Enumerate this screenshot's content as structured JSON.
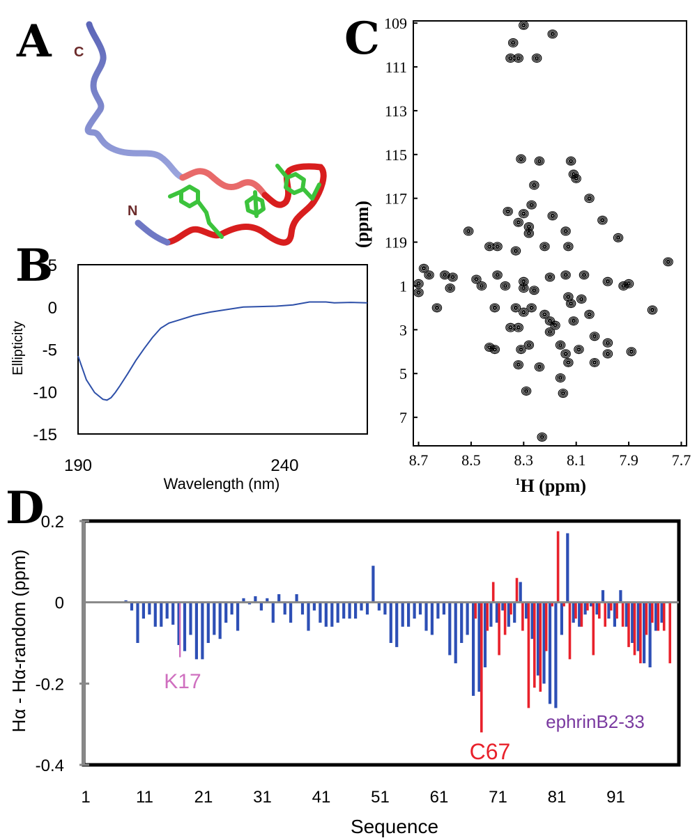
{
  "panels": {
    "A": {
      "letter": "A",
      "labels": {
        "c_term": "C",
        "n_term": "N"
      }
    },
    "B": {
      "letter": "B"
    },
    "C": {
      "letter": "C"
    },
    "D": {
      "letter": "D"
    }
  },
  "chart_data": [
    {
      "id": "B",
      "type": "line",
      "xlabel": "Wavelength (nm)",
      "ylabel": "Ellipticity",
      "xlim": [
        190,
        260
      ],
      "ylim": [
        -15,
        5
      ],
      "xticks": [
        "190",
        "240"
      ],
      "xtick_values": [
        190,
        240
      ],
      "yticks": [
        "5",
        "0",
        "-5",
        "-10",
        "-15"
      ],
      "ytick_values": [
        5,
        0,
        -5,
        -10,
        -15
      ],
      "color": "#2d4fa8",
      "series": [
        {
          "x": [
            190,
            192,
            194,
            196,
            197,
            198,
            199,
            200,
            202,
            204,
            206,
            208,
            210,
            212,
            214,
            218,
            222,
            226,
            230,
            234,
            238,
            242,
            246,
            250,
            252,
            256,
            260
          ],
          "y": [
            -5.8,
            -8.6,
            -10.1,
            -10.9,
            -11.0,
            -10.7,
            -10.1,
            -9.4,
            -7.9,
            -6.3,
            -4.9,
            -3.6,
            -2.5,
            -1.9,
            -1.6,
            -1.0,
            -0.6,
            -0.3,
            0.0,
            0.05,
            0.1,
            0.25,
            0.6,
            0.6,
            0.5,
            0.55,
            0.5
          ]
        }
      ]
    },
    {
      "id": "C",
      "type": "scatter",
      "xlabel": "1H (ppm)",
      "xlabel_sup": "1",
      "xlabel_rest": "H (ppm)",
      "ylabel": "(ppm)",
      "xlim": [
        8.72,
        7.68
      ],
      "ylim": [
        108.9,
        128.3
      ],
      "xticks": [
        "8.7",
        "8.5",
        "8.3",
        "8.1",
        "7.9",
        "7.7"
      ],
      "xtick_values": [
        8.7,
        8.5,
        8.3,
        8.1,
        7.9,
        7.7
      ],
      "yticks": [
        "109",
        "111",
        "113",
        "115",
        "117",
        "119",
        "1",
        "3",
        "5",
        "7"
      ],
      "ytick_values": [
        109,
        111,
        113,
        115,
        117,
        119,
        121,
        123,
        125,
        127
      ],
      "points": [
        [
          8.3,
          109.1
        ],
        [
          8.19,
          109.5
        ],
        [
          8.34,
          109.9
        ],
        [
          8.35,
          110.6
        ],
        [
          8.32,
          110.6
        ],
        [
          8.25,
          110.6
        ],
        [
          8.31,
          115.2
        ],
        [
          8.24,
          115.3
        ],
        [
          8.12,
          115.3
        ],
        [
          8.11,
          115.9
        ],
        [
          8.1,
          116.1
        ],
        [
          8.26,
          116.4
        ],
        [
          8.27,
          117.3
        ],
        [
          8.3,
          117.7
        ],
        [
          8.36,
          117.6
        ],
        [
          8.19,
          117.8
        ],
        [
          8.05,
          117.0
        ],
        [
          8.0,
          118.0
        ],
        [
          8.32,
          118.1
        ],
        [
          8.28,
          118.3
        ],
        [
          8.28,
          118.6
        ],
        [
          8.14,
          118.5
        ],
        [
          7.94,
          118.8
        ],
        [
          8.51,
          118.5
        ],
        [
          8.43,
          119.2
        ],
        [
          8.4,
          119.2
        ],
        [
          8.33,
          119.4
        ],
        [
          8.22,
          119.2
        ],
        [
          8.13,
          119.2
        ],
        [
          7.75,
          119.9
        ],
        [
          8.68,
          120.2
        ],
        [
          8.66,
          120.5
        ],
        [
          8.6,
          120.5
        ],
        [
          8.57,
          120.6
        ],
        [
          8.48,
          120.7
        ],
        [
          8.4,
          120.5
        ],
        [
          8.3,
          120.8
        ],
        [
          8.2,
          120.6
        ],
        [
          8.14,
          120.5
        ],
        [
          8.07,
          120.5
        ],
        [
          7.98,
          120.8
        ],
        [
          7.92,
          121.0
        ],
        [
          7.9,
          120.9
        ],
        [
          8.7,
          120.9
        ],
        [
          8.7,
          121.3
        ],
        [
          8.58,
          121.1
        ],
        [
          8.46,
          121.0
        ],
        [
          8.37,
          121.0
        ],
        [
          8.3,
          121.1
        ],
        [
          8.26,
          121.2
        ],
        [
          8.13,
          121.5
        ],
        [
          8.08,
          121.6
        ],
        [
          8.12,
          121.8
        ],
        [
          8.63,
          122.0
        ],
        [
          8.41,
          122.0
        ],
        [
          8.33,
          122.0
        ],
        [
          8.3,
          122.2
        ],
        [
          8.27,
          122.0
        ],
        [
          8.22,
          122.3
        ],
        [
          8.2,
          122.6
        ],
        [
          8.18,
          122.8
        ],
        [
          8.11,
          122.6
        ],
        [
          8.05,
          122.3
        ],
        [
          7.81,
          122.1
        ],
        [
          8.35,
          122.9
        ],
        [
          8.32,
          122.9
        ],
        [
          8.2,
          123.1
        ],
        [
          8.03,
          123.3
        ],
        [
          7.98,
          123.6
        ],
        [
          8.43,
          123.8
        ],
        [
          8.41,
          123.9
        ],
        [
          8.31,
          123.9
        ],
        [
          8.28,
          123.7
        ],
        [
          8.16,
          123.7
        ],
        [
          8.14,
          124.1
        ],
        [
          8.09,
          123.9
        ],
        [
          7.98,
          124.1
        ],
        [
          7.89,
          124.0
        ],
        [
          8.32,
          124.6
        ],
        [
          8.24,
          124.7
        ],
        [
          8.13,
          124.5
        ],
        [
          8.03,
          124.5
        ],
        [
          8.16,
          125.2
        ],
        [
          8.29,
          125.8
        ],
        [
          8.15,
          125.9
        ],
        [
          8.23,
          127.9
        ]
      ]
    },
    {
      "id": "D",
      "type": "bar",
      "xlabel": "Sequence",
      "ylabel": "Hα - Hα-random (ppm)",
      "xlim": [
        1,
        101
      ],
      "ylim": [
        -0.4,
        0.2
      ],
      "xticks": [
        "1",
        "11",
        "21",
        "31",
        "41",
        "51",
        "61",
        "71",
        "81",
        "91"
      ],
      "xtick_values": [
        1,
        11,
        21,
        31,
        41,
        51,
        61,
        71,
        81,
        91
      ],
      "yticks": [
        "0.2",
        "0",
        "-0.2",
        "-0.4"
      ],
      "ytick_values": [
        0.2,
        0,
        -0.2,
        -0.4
      ],
      "colors": {
        "blue": "#2d4fb5",
        "red": "#e8212b",
        "pink": "#cf6fbf",
        "zero_line": "#888888"
      },
      "series": [
        {
          "name": "",
          "color": "#2d4fb5",
          "x": [
            8,
            9,
            10,
            11,
            12,
            13,
            14,
            15,
            16,
            17,
            18,
            19,
            20,
            21,
            22,
            23,
            24,
            25,
            26,
            27,
            28,
            29,
            30,
            31,
            32,
            33,
            34,
            35,
            36,
            37,
            38,
            39,
            40,
            41,
            42,
            43,
            44,
            45,
            46,
            47,
            48,
            49,
            50,
            51,
            52,
            53,
            54,
            55,
            56,
            57,
            58,
            59,
            60,
            61,
            62,
            63,
            64,
            65,
            66,
            67,
            68,
            69,
            70,
            71,
            72,
            73,
            74,
            75,
            76,
            77,
            78,
            79,
            80,
            81,
            82,
            83,
            84,
            85,
            86,
            87,
            88,
            89,
            90,
            91,
            92,
            93,
            94,
            95,
            96,
            97,
            98,
            99
          ],
          "y": [
            0.005,
            -0.02,
            -0.1,
            -0.04,
            -0.03,
            -0.06,
            -0.06,
            -0.04,
            -0.055,
            -0.105,
            -0.12,
            -0.08,
            -0.14,
            -0.14,
            -0.1,
            -0.08,
            -0.09,
            -0.05,
            -0.03,
            -0.07,
            0.01,
            -0.005,
            0.015,
            -0.02,
            0.01,
            -0.05,
            0.02,
            -0.03,
            -0.05,
            0.02,
            -0.03,
            -0.07,
            -0.02,
            -0.05,
            -0.06,
            -0.06,
            -0.05,
            -0.04,
            -0.04,
            -0.04,
            -0.02,
            -0.03,
            0.09,
            -0.02,
            -0.03,
            -0.1,
            -0.11,
            -0.06,
            -0.06,
            -0.04,
            -0.03,
            -0.07,
            -0.08,
            -0.04,
            -0.03,
            -0.13,
            -0.15,
            -0.1,
            -0.08,
            -0.23,
            -0.22,
            -0.16,
            -0.06,
            -0.05,
            -0.02,
            -0.06,
            -0.05,
            0.05,
            -0.04,
            -0.09,
            -0.18,
            -0.2,
            -0.25,
            -0.26,
            -0.08,
            0.17,
            -0.05,
            -0.06,
            -0.03,
            -0.01,
            -0.03,
            0.03,
            -0.04,
            -0.06,
            0.03,
            -0.06,
            -0.1,
            -0.12,
            -0.15,
            -0.16,
            -0.07,
            -0.05
          ]
        },
        {
          "name": "ephrinB2-33",
          "color": "#e8212b",
          "x": [
            67,
            68,
            69,
            70,
            71,
            72,
            73,
            74,
            75,
            76,
            77,
            78,
            79,
            80,
            81,
            82,
            83,
            84,
            85,
            86,
            87,
            88,
            89,
            90,
            91,
            92,
            93,
            94,
            95,
            96,
            97,
            98,
            99,
            100
          ],
          "y": [
            -0.04,
            -0.32,
            -0.07,
            0.05,
            -0.13,
            -0.08,
            -0.03,
            0.06,
            -0.07,
            -0.26,
            -0.21,
            -0.22,
            -0.12,
            -0.01,
            0.175,
            -0.01,
            -0.14,
            -0.04,
            -0.06,
            -0.02,
            -0.13,
            -0.04,
            -0.06,
            -0.02,
            -0.04,
            -0.06,
            -0.11,
            -0.13,
            -0.15,
            -0.08,
            -0.05,
            -0.07,
            -0.07,
            -0.15
          ]
        },
        {
          "name": "K17",
          "color": "#cf6fbf",
          "x": [
            17
          ],
          "y": [
            -0.135
          ]
        }
      ],
      "annotations": {
        "k17": "K17",
        "c67": "C67",
        "ephrin": "ephrinB2-33"
      }
    }
  ]
}
